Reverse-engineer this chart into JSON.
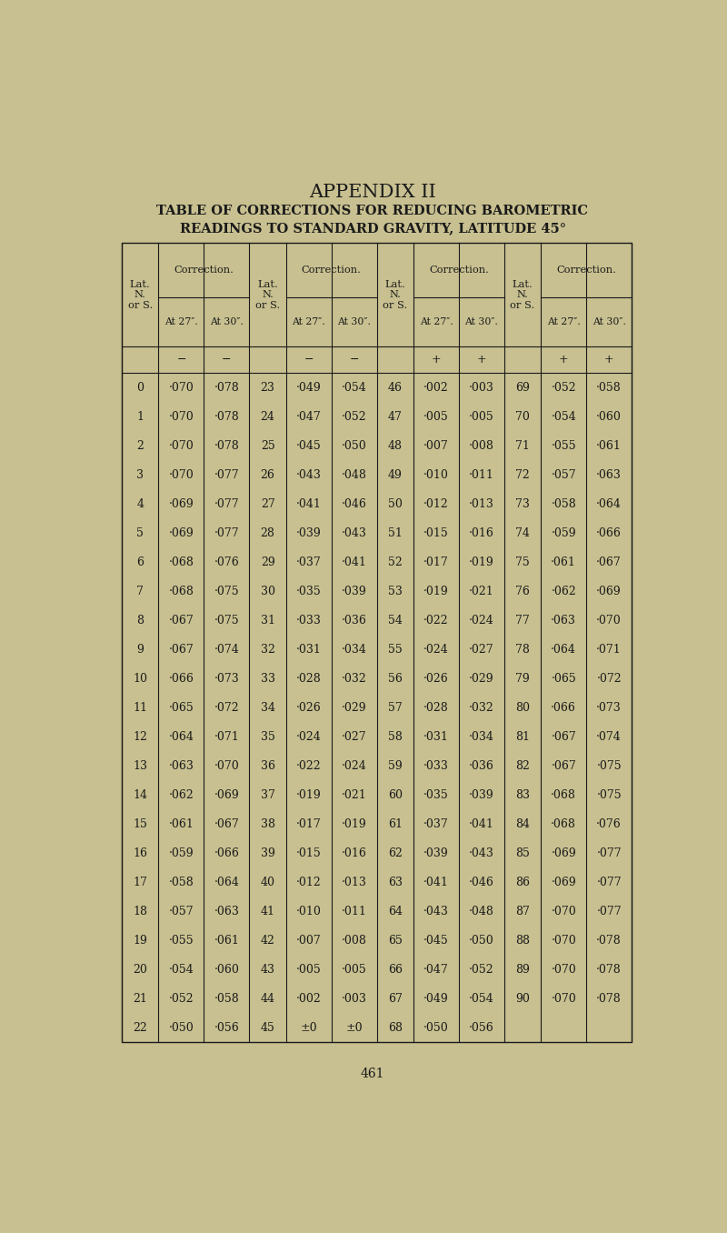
{
  "title1": "APPENDIX II",
  "title2": "TABLE OF CORRECTIONS FOR REDUCING BAROMETRIC",
  "title3": "READINGS TO STANDARD GRAVITY, LATITUDE 45°",
  "page_number": "461",
  "background_color": "#c8c090",
  "text_color": "#1a1a1a",
  "rows": [
    [
      0,
      "·070",
      "·078",
      23,
      "·049",
      "·054",
      46,
      "·002",
      "·003",
      69,
      "·052",
      "·058"
    ],
    [
      1,
      "·070",
      "·078",
      24,
      "·047",
      "·052",
      47,
      "·005",
      "·005",
      70,
      "·054",
      "·060"
    ],
    [
      2,
      "·070",
      "·078",
      25,
      "·045",
      "·050",
      48,
      "·007",
      "·008",
      71,
      "·055",
      "·061"
    ],
    [
      3,
      "·070",
      "·077",
      26,
      "·043",
      "·048",
      49,
      "·010",
      "·011",
      72,
      "·057",
      "·063"
    ],
    [
      4,
      "·069",
      "·077",
      27,
      "·041",
      "·046",
      50,
      "·012",
      "·013",
      73,
      "·058",
      "·064"
    ],
    [
      5,
      "·069",
      "·077",
      28,
      "·039",
      "·043",
      51,
      "·015",
      "·016",
      74,
      "·059",
      "·066"
    ],
    [
      6,
      "·068",
      "·076",
      29,
      "·037",
      "·041",
      52,
      "·017",
      "·019",
      75,
      "·061",
      "·067"
    ],
    [
      7,
      "·068",
      "·075",
      30,
      "·035",
      "·039",
      53,
      "·019",
      "·021",
      76,
      "·062",
      "·069"
    ],
    [
      8,
      "·067",
      "·075",
      31,
      "·033",
      "·036",
      54,
      "·022",
      "·024",
      77,
      "·063",
      "·070"
    ],
    [
      9,
      "·067",
      "·074",
      32,
      "·031",
      "·034",
      55,
      "·024",
      "·027",
      78,
      "·064",
      "·071"
    ],
    [
      10,
      "·066",
      "·073",
      33,
      "·028",
      "·032",
      56,
      "·026",
      "·029",
      79,
      "·065",
      "·072"
    ],
    [
      11,
      "·065",
      "·072",
      34,
      "·026",
      "·029",
      57,
      "·028",
      "·032",
      80,
      "·066",
      "·073"
    ],
    [
      12,
      "·064",
      "·071",
      35,
      "·024",
      "·027",
      58,
      "·031",
      "·034",
      81,
      "·067",
      "·074"
    ],
    [
      13,
      "·063",
      "·070",
      36,
      "·022",
      "·024",
      59,
      "·033",
      "·036",
      82,
      "·067",
      "·075"
    ],
    [
      14,
      "·062",
      "·069",
      37,
      "·019",
      "·021",
      60,
      "·035",
      "·039",
      83,
      "·068",
      "·075"
    ],
    [
      15,
      "·061",
      "·067",
      38,
      "·017",
      "·019",
      61,
      "·037",
      "·041",
      84,
      "·068",
      "·076"
    ],
    [
      16,
      "·059",
      "·066",
      39,
      "·015",
      "·016",
      62,
      "·039",
      "·043",
      85,
      "·069",
      "·077"
    ],
    [
      17,
      "·058",
      "·064",
      40,
      "·012",
      "·013",
      63,
      "·041",
      "·046",
      86,
      "·069",
      "·077"
    ],
    [
      18,
      "·057",
      "·063",
      41,
      "·010",
      "·011",
      64,
      "·043",
      "·048",
      87,
      "·070",
      "·077"
    ],
    [
      19,
      "·055",
      "·061",
      42,
      "·007",
      "·008",
      65,
      "·045",
      "·050",
      88,
      "·070",
      "·078"
    ],
    [
      20,
      "·054",
      "·060",
      43,
      "·005",
      "·005",
      66,
      "·047",
      "·052",
      89,
      "·070",
      "·078"
    ],
    [
      21,
      "·052",
      "·058",
      44,
      "·002",
      "·003",
      67,
      "·049",
      "·054",
      90,
      "·070",
      "·078"
    ],
    [
      22,
      "·050",
      "·056",
      45,
      "±0",
      "±0",
      68,
      "·050",
      "·056",
      "",
      "",
      ""
    ]
  ]
}
